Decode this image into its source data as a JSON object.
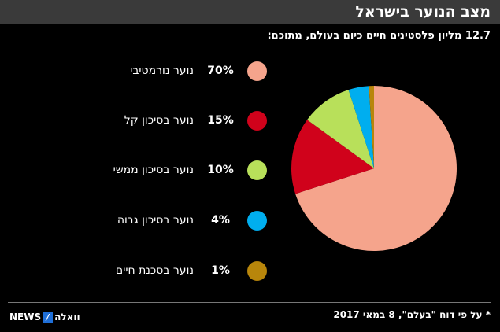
{
  "header": {
    "title": "מצב הנוער בישראל"
  },
  "subtitle": "12.7 מליון פלסטינים חיים כיום בעולם, מתוכם:",
  "chart_data": {
    "type": "pie",
    "categories": [
      "נוער נורמטיבי",
      "נוער בסיכון קל",
      "נוער בסיכון ממשי",
      "נוער בסיכון גבוה",
      "נוער בסכנת חיים"
    ],
    "values": [
      70,
      15,
      10,
      4,
      1
    ],
    "value_labels": [
      "70%",
      "15%",
      "10%",
      "4%",
      "1%"
    ],
    "colors": [
      "#f5a48c",
      "#d0021b",
      "#b8e05a",
      "#00aeef",
      "#b8860b"
    ],
    "legend_position": "left",
    "start_angle": "top",
    "direction": "clockwise"
  },
  "footnote": "* על פי דוח \"בעלם\", 8 במאי 2017",
  "logo": {
    "left": "NEWS",
    "mark": "/",
    "right": "וואלה"
  }
}
